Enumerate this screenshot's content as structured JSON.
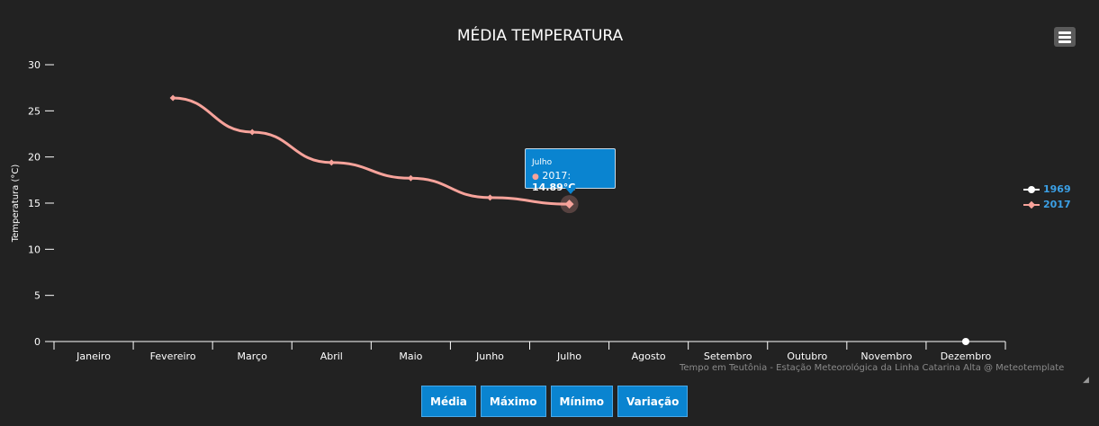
{
  "chart_data": {
    "type": "line",
    "title": "MÉDIA TEMPERATURA",
    "xlabel": "",
    "ylabel": "Temperatura (°C)",
    "categories": [
      "Janeiro",
      "Fevereiro",
      "Março",
      "Abril",
      "Maio",
      "Junho",
      "Julho",
      "Agosto",
      "Setembro",
      "Outubro",
      "Novembro",
      "Dezembro"
    ],
    "ylim": [
      0,
      30
    ],
    "yticks": [
      "0",
      "5",
      "10",
      "15",
      "20",
      "25",
      "30"
    ],
    "legend_position": "right",
    "series": [
      {
        "name": "1969",
        "color": "#ffffff",
        "values": [
          null,
          null,
          null,
          null,
          null,
          null,
          null,
          null,
          null,
          null,
          null,
          0
        ]
      },
      {
        "name": "2017",
        "color": "#f7a39b",
        "values": [
          null,
          26.4,
          22.7,
          19.4,
          17.7,
          15.6,
          14.89,
          null,
          null,
          null,
          null,
          null
        ]
      }
    ],
    "tooltip": {
      "category": "Julho",
      "series": "2017",
      "label": "2017: ",
      "value": "14.89°C"
    },
    "credits": "Tempo em Teutônia - Estação Meteorológica da Linha Catarina Alta @ Meteotemplate"
  },
  "buttons": [
    "Média",
    "Máximo",
    "Mínimo",
    "Variação"
  ],
  "menu_icon": "hamburger-menu-icon"
}
